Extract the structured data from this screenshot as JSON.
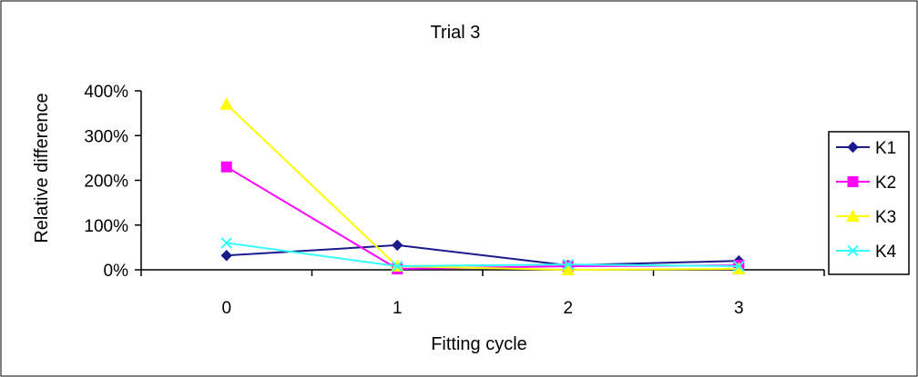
{
  "colors": {
    "frame": "#000000",
    "background": "#ffffff",
    "axis": "#000000"
  },
  "chart_data": {
    "type": "line",
    "title": "Trial 3",
    "xlabel": "Fitting cycle",
    "ylabel": "Relative difference",
    "categories": [
      "0",
      "1",
      "2",
      "3"
    ],
    "yticks": [
      "0%",
      "100%",
      "200%",
      "300%",
      "400%"
    ],
    "ylim": [
      0,
      400
    ],
    "grid": false,
    "legend_position": "right",
    "series": [
      {
        "name": "K1",
        "values": [
          32,
          55,
          10,
          20
        ],
        "color": "#1a1a8c",
        "marker": "diamond"
      },
      {
        "name": "K2",
        "values": [
          230,
          2,
          8,
          10
        ],
        "color": "#ff00ff",
        "marker": "square"
      },
      {
        "name": "K3",
        "values": [
          370,
          8,
          0,
          2
        ],
        "color": "#ffff00",
        "marker": "triangle"
      },
      {
        "name": "K4",
        "values": [
          60,
          8,
          12,
          8
        ],
        "color": "#33ffff",
        "marker": "x"
      }
    ]
  }
}
